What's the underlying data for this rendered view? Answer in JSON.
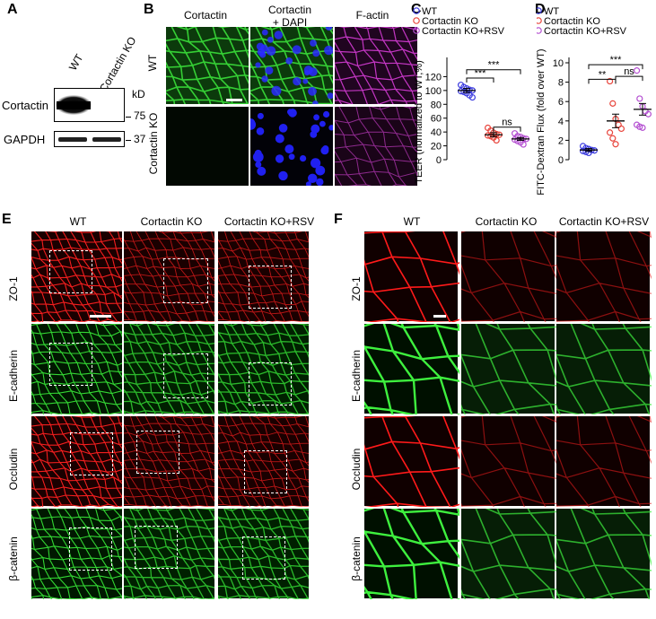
{
  "panels": {
    "A": "A",
    "B": "B",
    "C": "C",
    "D": "D",
    "E": "E",
    "F": "F"
  },
  "panelA": {
    "lanes": [
      "WT",
      "Cortactin KO"
    ],
    "bands": [
      {
        "name": "Cortactin",
        "marker": "75"
      },
      {
        "name": "GAPDH",
        "marker": "37"
      }
    ],
    "unit": "kD"
  },
  "panelB": {
    "columns": [
      "Cortactin",
      "Cortactin\n+ DAPI",
      "F-actin"
    ],
    "rows": [
      "WT",
      "Cortactin KO"
    ]
  },
  "panelE": {
    "columns": [
      "WT",
      "Cortactin KO",
      "Cortactin KO+RSV"
    ],
    "rows": [
      "ZO-1",
      "E-cadherin",
      "Occludin",
      "β-catenin"
    ]
  },
  "panelF": {
    "columns": [
      "WT",
      "Cortactin KO",
      "Cortactin KO+RSV"
    ],
    "rows": [
      "ZO-1",
      "E-cadherin",
      "Occludin",
      "β-catenin"
    ]
  },
  "colors": {
    "blue": "#3a3adf",
    "red": "#e8453c",
    "purple": "#b44fd1",
    "zo1": "#ff1a1a",
    "ecad": "#2ee02e"
  },
  "chart_data": [
    {
      "type": "scatter",
      "panel": "C",
      "ylabel": "TEER (normalized to WT,%)",
      "ylim": [
        0,
        140
      ],
      "yticks": [
        0,
        20,
        40,
        60,
        80,
        100,
        120
      ],
      "legend": [
        "WT",
        "Cortactin KO",
        "Cortactin KO+RSV"
      ],
      "series": [
        {
          "name": "WT",
          "color": "#3a3adf",
          "mean": 100,
          "sem": 3,
          "values": [
            108,
            105,
            103,
            101,
            100,
            99,
            98,
            96,
            93,
            90
          ]
        },
        {
          "name": "Cortactin KO",
          "color": "#e8453c",
          "mean": 36,
          "sem": 3,
          "values": [
            46,
            42,
            39,
            37,
            36,
            35,
            34,
            32,
            28
          ]
        },
        {
          "name": "Cortactin KO+RSV",
          "color": "#b44fd1",
          "mean": 30,
          "sem": 2,
          "values": [
            38,
            34,
            33,
            31,
            30,
            29,
            27,
            25,
            22
          ]
        }
      ],
      "annotations": [
        {
          "from": 0,
          "to": 1,
          "label": "***",
          "y": 118
        },
        {
          "from": 0,
          "to": 2,
          "label": "***",
          "y": 130
        },
        {
          "from": 1,
          "to": 2,
          "label": "ns",
          "y": 47
        }
      ]
    },
    {
      "type": "scatter",
      "panel": "D",
      "ylabel": "FITC-Dextran Flux (fold over WT)",
      "ylim": [
        0,
        10
      ],
      "yticks": [
        0,
        2,
        4,
        6,
        8,
        10
      ],
      "legend": [
        "WT",
        "Cortactin KO",
        "Cortactin KO+RSV"
      ],
      "series": [
        {
          "name": "WT",
          "color": "#3a3adf",
          "mean": 1.0,
          "sem": 0.15,
          "values": [
            1.4,
            1.2,
            1.1,
            1.0,
            0.95,
            0.9,
            0.8,
            0.7
          ]
        },
        {
          "name": "Cortactin KO",
          "color": "#e8453c",
          "mean": 4.0,
          "sem": 0.7,
          "values": [
            8.1,
            5.8,
            4.2,
            3.6,
            3.2,
            2.8,
            2.2,
            1.6
          ]
        },
        {
          "name": "Cortactin KO+RSV",
          "color": "#b44fd1",
          "mean": 5.2,
          "sem": 0.6,
          "values": [
            9.2,
            6.3,
            5.5,
            5.0,
            4.7,
            3.6,
            3.4,
            3.3
          ]
        }
      ],
      "annotations": [
        {
          "from": 0,
          "to": 1,
          "label": "**",
          "y": 8.3
        },
        {
          "from": 0,
          "to": 2,
          "label": "***",
          "y": 9.8
        },
        {
          "from": 1,
          "to": 2,
          "label": "ns",
          "y": 8.6
        }
      ]
    }
  ]
}
